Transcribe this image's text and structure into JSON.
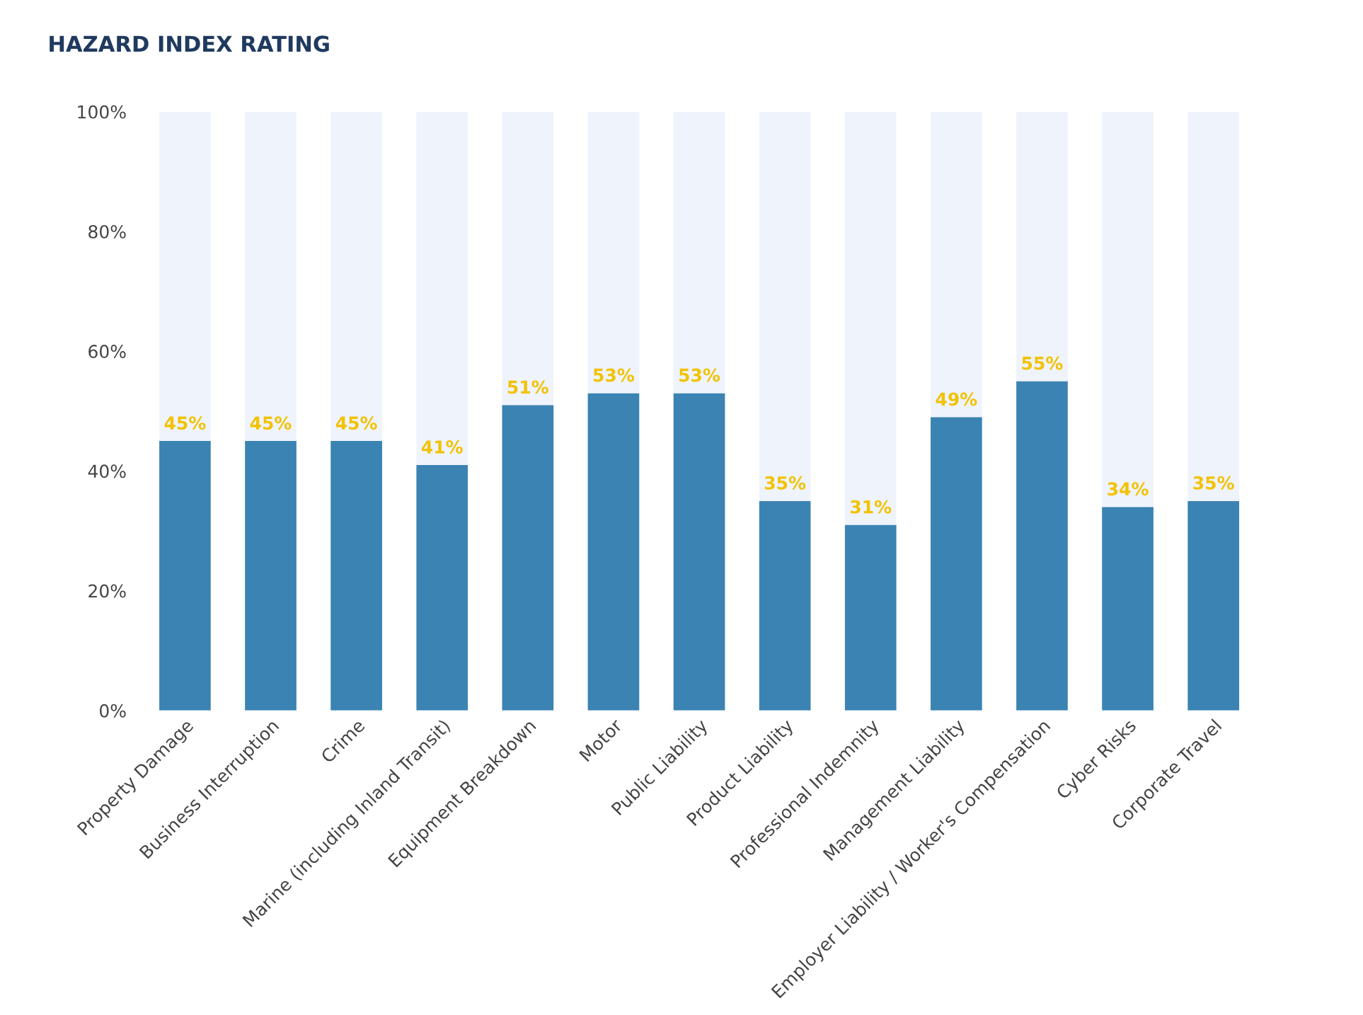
{
  "chart_data": {
    "type": "bar",
    "title": "HAZARD INDEX RATING",
    "categories": [
      "Property Damage",
      "Business Interruption",
      "Crime",
      "Marine (including Inland Transit)",
      "Equipment Breakdown",
      "Motor",
      "Public Liability",
      "Product Liability",
      "Professional Indemnity",
      "Management Liability",
      "Employer Liability / Worker's Compensation",
      "Cyber Risks",
      "Corporate Travel"
    ],
    "stacked": true,
    "series": [
      {
        "color": "#3a83b3",
        "values": [
          45,
          45,
          45,
          41,
          51,
          53,
          53,
          35,
          31,
          49,
          55,
          34,
          35
        ],
        "value_labels": [
          "45%",
          "45%",
          "45%",
          "41%",
          "51%",
          "53%",
          "53%",
          "35%",
          "31%",
          "49%",
          "55%",
          "34%",
          "35%"
        ]
      },
      {
        "color": "#eff3fb",
        "values": [
          55,
          55,
          55,
          59,
          49,
          47,
          47,
          65,
          69,
          51,
          45,
          66,
          65
        ]
      }
    ],
    "ylim": [
      0,
      100
    ],
    "yticks": [
      {
        "value": 0,
        "label": "0%"
      },
      {
        "value": 20,
        "label": "20%"
      },
      {
        "value": 40,
        "label": "40%"
      },
      {
        "value": 60,
        "label": "60%"
      },
      {
        "value": 80,
        "label": "80%"
      },
      {
        "value": 100,
        "label": "100%"
      }
    ],
    "grid": false,
    "legend": false
  }
}
